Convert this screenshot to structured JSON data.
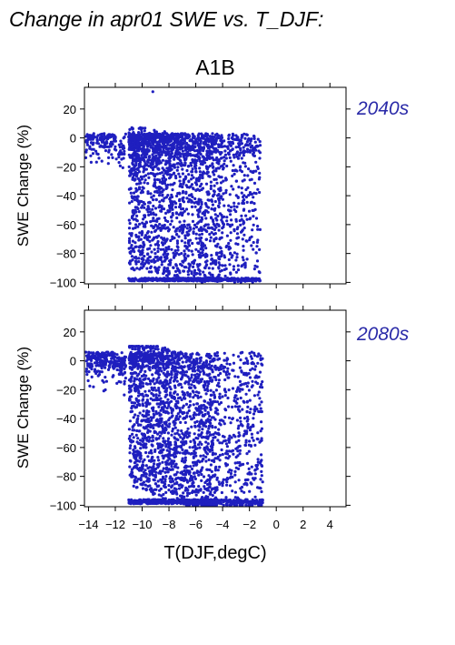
{
  "title": "Change in apr01 SWE vs. T_DJF:",
  "scenario": "A1B",
  "xlabel": "T(DJF,degC)",
  "colors": {
    "points": "#1f1fbf",
    "period_label": "#2a2aa8"
  },
  "chart_data": [
    {
      "type": "scatter",
      "period": "2040s",
      "ylabel": "SWE Change (%)",
      "xlim": [
        -14.3,
        5.2
      ],
      "ylim": [
        -101,
        35
      ],
      "xticks": [
        -14,
        -12,
        -10,
        -8,
        -6,
        -4,
        -2,
        0,
        2,
        4
      ],
      "yticks": [
        20,
        0,
        -20,
        -40,
        -60,
        -80,
        -100
      ],
      "ytick_labels": [
        "20",
        "0",
        "−20",
        "−40",
        "−60",
        "−80",
        "−100"
      ],
      "n_points_approx": 3000,
      "trend": "cluster near 0% for T < -10, increasing spread to -100% for -11 < T < -2",
      "x_range_points": [
        -14.2,
        -1.2
      ],
      "outlier": {
        "x": -9.2,
        "y": 32
      }
    },
    {
      "type": "scatter",
      "period": "2080s",
      "ylabel": "SWE Change (%)",
      "xlim": [
        -14.3,
        5.2
      ],
      "ylim": [
        -101,
        35
      ],
      "xticks": [
        -14,
        -12,
        -10,
        -8,
        -6,
        -4,
        -2,
        0,
        2,
        4
      ],
      "xtick_labels": [
        "−14",
        "−12",
        "−10",
        "−8",
        "−6",
        "−4",
        "−2",
        "0",
        "2",
        "4"
      ],
      "yticks": [
        20,
        0,
        -20,
        -40,
        -60,
        -80,
        -100
      ],
      "ytick_labels": [
        "20",
        "0",
        "−20",
        "−40",
        "−60",
        "−80",
        "−100"
      ],
      "n_points_approx": 3000,
      "trend": "values near 0-8% for T < -10, broad spread down to -100% for -12 < T < -1",
      "x_range_points": [
        -14.2,
        -1.0
      ]
    }
  ]
}
